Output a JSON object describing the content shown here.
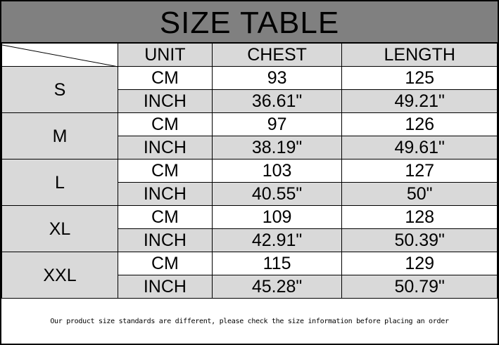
{
  "title": "SIZE TABLE",
  "headers": [
    "UNIT",
    "CHEST",
    "LENGTH"
  ],
  "rows": [
    {
      "size": "S",
      "cm": {
        "unit": "CM",
        "chest": "93",
        "length": "125"
      },
      "inch": {
        "unit": "INCH",
        "chest": "36.61\"",
        "length": "49.21\""
      }
    },
    {
      "size": "M",
      "cm": {
        "unit": "CM",
        "chest": "97",
        "length": "126"
      },
      "inch": {
        "unit": "INCH",
        "chest": "38.19\"",
        "length": "49.61\""
      }
    },
    {
      "size": "L",
      "cm": {
        "unit": "CM",
        "chest": "103",
        "length": "127"
      },
      "inch": {
        "unit": "INCH",
        "chest": "40.55\"",
        "length": "50\""
      }
    },
    {
      "size": "XL",
      "cm": {
        "unit": "CM",
        "chest": "109",
        "length": "128"
      },
      "inch": {
        "unit": "INCH",
        "chest": "42.91\"",
        "length": "50.39\""
      }
    },
    {
      "size": "XXL",
      "cm": {
        "unit": "CM",
        "chest": "115",
        "length": "129"
      },
      "inch": {
        "unit": "INCH",
        "chest": "45.28\"",
        "length": "50.79\""
      }
    }
  ],
  "note": "Our product size standards are different, please check the size information before placing an order",
  "colors": {
    "title_bg": "#808080",
    "cell_gray": "#d9d9d9"
  }
}
